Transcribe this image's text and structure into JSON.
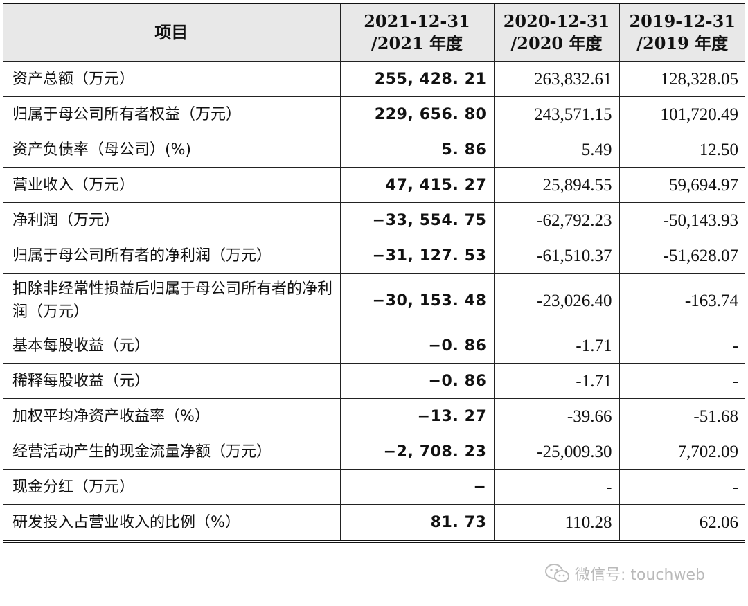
{
  "table": {
    "headers": [
      {
        "line1": "项目",
        "line2": ""
      },
      {
        "line1": "2021-12-31",
        "line2": "/2021 年度"
      },
      {
        "line1": "2020-12-31",
        "line2": "/2020 年度"
      },
      {
        "line1": "2019-12-31",
        "line2": "/2019 年度"
      }
    ],
    "rows": [
      {
        "label": "资产总额（万元）",
        "v2021": "255, 428. 21",
        "v2020": "263,832.61",
        "v2019": "128,328.05"
      },
      {
        "label": "归属于母公司所有者权益（万元）",
        "v2021": "229, 656. 80",
        "v2020": "243,571.15",
        "v2019": "101,720.49"
      },
      {
        "label": "资产负债率（母公司）(%)",
        "v2021": "5. 86",
        "v2020": "5.49",
        "v2019": "12.50"
      },
      {
        "label": "营业收入（万元）",
        "v2021": "47, 415. 27",
        "v2020": "25,894.55",
        "v2019": "59,694.97"
      },
      {
        "label": "净利润（万元）",
        "v2021": "−33, 554. 75",
        "v2020": "-62,792.23",
        "v2019": "-50,143.93"
      },
      {
        "label": "归属于母公司所有者的净利润（万元）",
        "v2021": "−31, 127. 53",
        "v2020": "-61,510.37",
        "v2019": "-51,628.07"
      },
      {
        "label": "扣除非经常性损益后归属于母公司所有者的净利润（万元）",
        "v2021": "−30, 153. 48",
        "v2020": "-23,026.40",
        "v2019": "-163.74"
      },
      {
        "label": "基本每股收益（元）",
        "v2021": "−0. 86",
        "v2020": "-1.71",
        "v2019": "-"
      },
      {
        "label": "稀释每股收益（元）",
        "v2021": "−0. 86",
        "v2020": "-1.71",
        "v2019": "-"
      },
      {
        "label": "加权平均净资产收益率（%）",
        "v2021": "−13. 27",
        "v2020": "-39.66",
        "v2019": "-51.68"
      },
      {
        "label": "经营活动产生的现金流量净额（万元）",
        "v2021": "−2, 708. 23",
        "v2020": "-25,009.30",
        "v2019": "7,702.09"
      },
      {
        "label": "现金分红（万元）",
        "v2021": "−",
        "v2020": "-",
        "v2019": "-"
      },
      {
        "label": "研发投入占营业收入的比例（%）",
        "v2021": "81. 73",
        "v2020": "110.28",
        "v2019": "62.06"
      }
    ]
  },
  "watermark": {
    "text": "微信号: touchweb",
    "icon": "wechat-icon"
  }
}
